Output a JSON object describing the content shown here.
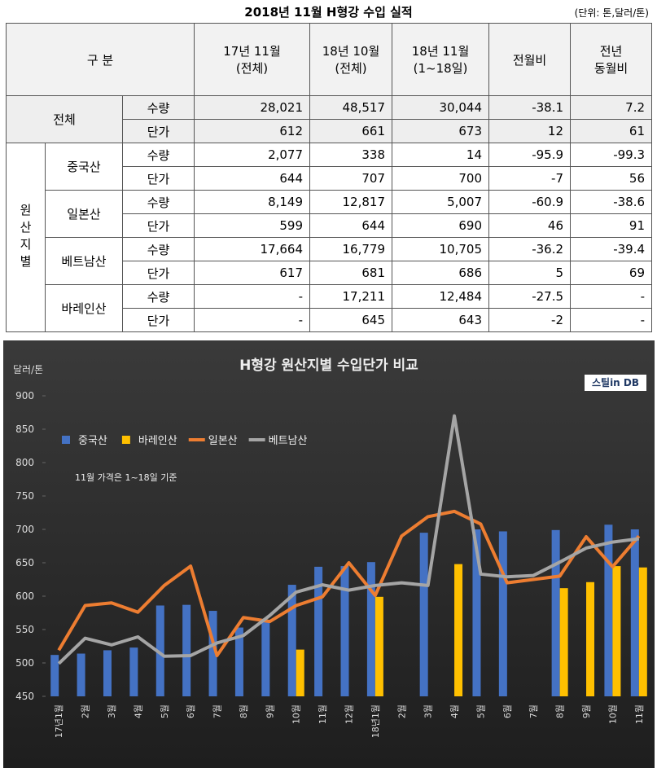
{
  "table": {
    "title": "2018년 11월 H형강 수입 실적",
    "unit": "(단위: 톤,달러/톤)",
    "header": [
      "구 분",
      "17년 11월\n(전체)",
      "18년 10월\n(전체)",
      "18년 11월\n(1~18일)",
      "전월비",
      "전년\n동월비"
    ],
    "total": {
      "label": "전체",
      "rows": [
        [
          "수량",
          "28,021",
          "48,517",
          "30,044",
          "-38.1",
          "7.2"
        ],
        [
          "단가",
          "612",
          "661",
          "673",
          "12",
          "61"
        ]
      ]
    },
    "origin": {
      "label": "원산지별",
      "groups": [
        {
          "name": "중국산",
          "rows": [
            [
              "수량",
              "2,077",
              "338",
              "14",
              "-95.9",
              "-99.3"
            ],
            [
              "단가",
              "644",
              "707",
              "700",
              "-7",
              "56"
            ]
          ]
        },
        {
          "name": "일본산",
          "rows": [
            [
              "수량",
              "8,149",
              "12,817",
              "5,007",
              "-60.9",
              "-38.6"
            ],
            [
              "단가",
              "599",
              "644",
              "690",
              "46",
              "91"
            ]
          ]
        },
        {
          "name": "베트남산",
          "rows": [
            [
              "수량",
              "17,664",
              "16,779",
              "10,705",
              "-36.2",
              "-39.4"
            ],
            [
              "단가",
              "617",
              "681",
              "686",
              "5",
              "69"
            ]
          ]
        },
        {
          "name": "바레인산",
          "rows": [
            [
              "수량",
              "-",
              "17,211",
              "12,484",
              "-27.5",
              "-"
            ],
            [
              "단가",
              "-",
              "645",
              "643",
              "-2",
              "-"
            ]
          ]
        }
      ]
    }
  },
  "chart_data": {
    "type": "combo",
    "title": "H형강 원산지별 수입단가 비교",
    "y_label": "달러/톤",
    "annotation": "11월 가격은 1~18일 기준",
    "logo": "스틸in DB",
    "legend": "top-left",
    "categories": [
      "17년1월",
      "2월",
      "3월",
      "4월",
      "5월",
      "6월",
      "7월",
      "8월",
      "9월",
      "10월",
      "11월",
      "12월",
      "18년1월",
      "2월",
      "3월",
      "4월",
      "5월",
      "6월",
      "7월",
      "8월",
      "9월",
      "10월",
      "11월"
    ],
    "series": [
      {
        "name": "중국산",
        "type": "bar",
        "color": "#4472c4",
        "values": [
          512,
          514,
          519,
          523,
          586,
          587,
          578,
          553,
          563,
          617,
          644,
          645,
          651,
          null,
          695,
          null,
          700,
          697,
          null,
          699,
          null,
          707,
          700
        ]
      },
      {
        "name": "바레인산",
        "type": "bar",
        "color": "#ffc000",
        "values": [
          null,
          null,
          null,
          null,
          null,
          null,
          null,
          null,
          null,
          520,
          null,
          null,
          599,
          null,
          null,
          648,
          null,
          null,
          null,
          612,
          621,
          645,
          643
        ]
      },
      {
        "name": "일본산",
        "type": "line",
        "color": "#ed7d31",
        "values": [
          519,
          586,
          590,
          576,
          616,
          645,
          511,
          568,
          562,
          586,
          599,
          650,
          601,
          690,
          719,
          727,
          708,
          620,
          625,
          630,
          689,
          644,
          690
        ]
      },
      {
        "name": "베트남산",
        "type": "line",
        "color": "#a5a5a5",
        "values": [
          499,
          537,
          527,
          539,
          510,
          511,
          530,
          541,
          571,
          606,
          617,
          609,
          616,
          620,
          616,
          870,
          633,
          629,
          631,
          651,
          672,
          681,
          686
        ]
      }
    ],
    "ylim": [
      450,
      900
    ],
    "yticks": [
      450,
      500,
      550,
      600,
      650,
      700,
      750,
      800,
      850,
      900
    ]
  }
}
